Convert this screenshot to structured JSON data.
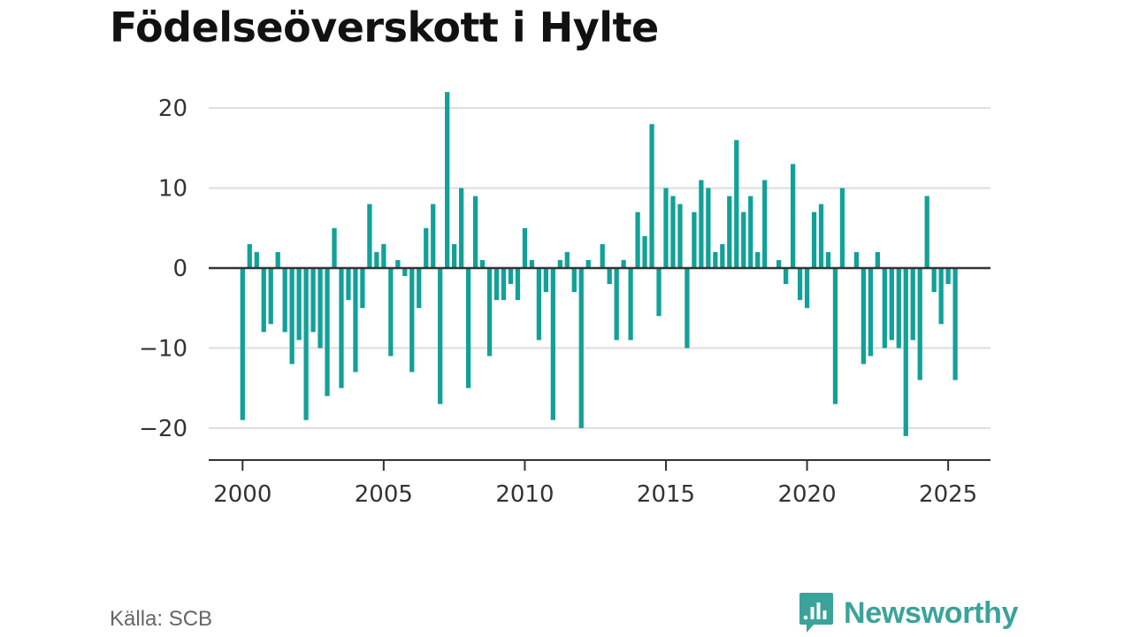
{
  "title": "Födelseöverskott i Hylte",
  "source": "Källa: SCB",
  "brand": {
    "name": "Newsworthy",
    "icon": "newsworthy-logo-icon",
    "color": "#3aa39a"
  },
  "colors": {
    "bar": "#12a198",
    "grid": "#dddddd",
    "zero_line": "#333333",
    "axis": "#333333"
  },
  "chart_data": {
    "type": "bar",
    "x_unit": "quarter",
    "title": "Födelseöverskott i Hylte",
    "xlabel": "",
    "ylabel": "",
    "xlim": [
      1998.8,
      2026.5
    ],
    "ylim": [
      -24,
      24
    ],
    "x_ticks": [
      2000,
      2005,
      2010,
      2015,
      2020,
      2025
    ],
    "y_ticks": [
      -20,
      -10,
      0,
      10,
      20
    ],
    "y_tick_labels": [
      "−20",
      "−10",
      "0",
      "10",
      "20"
    ],
    "grid": "horizontal",
    "series": [
      {
        "start": "2000-Q1",
        "values": [
          -19,
          3,
          2,
          -8,
          -7,
          2,
          -8,
          -12,
          -9,
          -19,
          -8,
          -10,
          -16,
          5,
          -15,
          -4,
          -13,
          -5,
          8,
          2,
          3,
          -11,
          1,
          -1,
          -13,
          -5,
          5,
          8,
          -17,
          22,
          3,
          10,
          -15,
          9,
          1,
          -11,
          -4,
          -4,
          -2,
          -4,
          5,
          1,
          -9,
          -3,
          -19,
          1,
          2,
          -3,
          -20,
          1,
          0,
          3,
          -2,
          -9,
          1,
          -9,
          7,
          4,
          18,
          -6,
          10,
          9,
          8,
          -10,
          7,
          11,
          10,
          2,
          3,
          9,
          16,
          7,
          9,
          2,
          11,
          0,
          1,
          -2,
          13,
          -4,
          -5,
          7,
          8,
          2,
          -17,
          10,
          0,
          2,
          -12,
          -11,
          2,
          -10,
          -9,
          -10,
          -21,
          -9,
          -14,
          9,
          -3,
          -7,
          -2,
          -14
        ]
      }
    ]
  }
}
